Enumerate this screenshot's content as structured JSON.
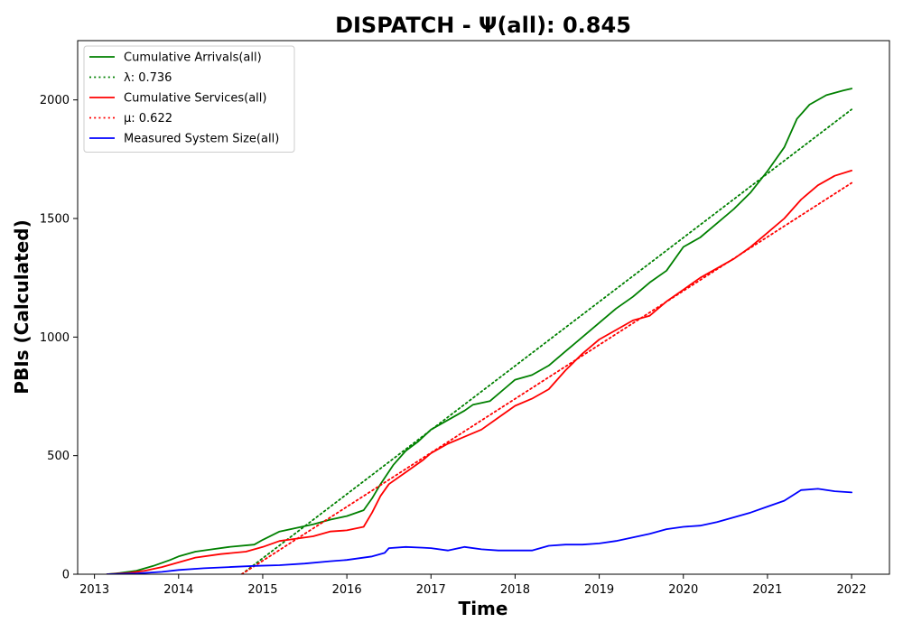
{
  "chart_data": {
    "type": "line",
    "title": "DISPATCH -  Ψ(all): 0.845",
    "xlabel": "Time",
    "ylabel": "PBIs (Calculated)",
    "xlim": [
      2012.8,
      2022.45
    ],
    "ylim": [
      0,
      2250
    ],
    "x_ticks": [
      2013,
      2014,
      2015,
      2016,
      2017,
      2018,
      2019,
      2020,
      2021,
      2022
    ],
    "x_tick_labels": [
      "2013",
      "2014",
      "2015",
      "2016",
      "2017",
      "2018",
      "2019",
      "2020",
      "2021",
      "2022"
    ],
    "y_ticks": [
      0,
      500,
      1000,
      1500,
      2000
    ],
    "y_tick_labels": [
      "0",
      "500",
      "1000",
      "1500",
      "2000"
    ],
    "grid": false,
    "legend_position": "top-left",
    "series": [
      {
        "name": "Cumulative Arrivals(all)",
        "style": "solid",
        "color": "#008000",
        "x": [
          2013.15,
          2013.3,
          2013.5,
          2013.7,
          2013.9,
          2014.0,
          2014.2,
          2014.4,
          2014.6,
          2014.9,
          2015.0,
          2015.2,
          2015.4,
          2015.6,
          2015.8,
          2016.0,
          2016.2,
          2016.3,
          2016.4,
          2016.55,
          2016.7,
          2016.85,
          2017.0,
          2017.2,
          2017.4,
          2017.5,
          2017.7,
          2017.9,
          2018.0,
          2018.2,
          2018.4,
          2018.6,
          2018.8,
          2019.0,
          2019.2,
          2019.4,
          2019.6,
          2019.8,
          2020.0,
          2020.2,
          2020.4,
          2020.6,
          2020.8,
          2021.0,
          2021.2,
          2021.35,
          2021.5,
          2021.7,
          2021.9,
          2022.0
        ],
        "y": [
          0,
          5,
          15,
          35,
          60,
          75,
          95,
          105,
          115,
          125,
          145,
          180,
          195,
          210,
          230,
          245,
          270,
          320,
          380,
          460,
          520,
          560,
          610,
          650,
          690,
          715,
          730,
          790,
          820,
          840,
          880,
          940,
          1000,
          1060,
          1120,
          1170,
          1230,
          1280,
          1380,
          1420,
          1480,
          1540,
          1610,
          1700,
          1800,
          1920,
          1980,
          2020,
          2040,
          2048
        ]
      },
      {
        "name": "λ: 0.736",
        "style": "dotted",
        "color": "#008000",
        "x": [
          2014.75,
          2022.0
        ],
        "y": [
          0,
          1960
        ]
      },
      {
        "name": "Cumulative Services(all)",
        "style": "solid",
        "color": "#ff0000",
        "x": [
          2013.15,
          2013.4,
          2013.6,
          2013.8,
          2014.0,
          2014.2,
          2014.5,
          2014.8,
          2015.0,
          2015.2,
          2015.4,
          2015.6,
          2015.8,
          2016.0,
          2016.2,
          2016.3,
          2016.4,
          2016.5,
          2016.7,
          2016.9,
          2017.0,
          2017.2,
          2017.4,
          2017.6,
          2017.8,
          2018.0,
          2018.2,
          2018.4,
          2018.6,
          2018.8,
          2019.0,
          2019.2,
          2019.4,
          2019.6,
          2019.8,
          2020.0,
          2020.2,
          2020.4,
          2020.6,
          2020.8,
          2021.0,
          2021.2,
          2021.4,
          2021.6,
          2021.8,
          2022.0
        ],
        "y": [
          0,
          5,
          15,
          30,
          50,
          70,
          85,
          95,
          115,
          140,
          150,
          160,
          180,
          185,
          200,
          260,
          330,
          380,
          430,
          480,
          510,
          550,
          580,
          610,
          660,
          710,
          740,
          780,
          860,
          930,
          990,
          1030,
          1070,
          1090,
          1150,
          1200,
          1250,
          1290,
          1330,
          1380,
          1440,
          1500,
          1580,
          1640,
          1680,
          1702
        ]
      },
      {
        "name": "μ: 0.622",
        "style": "dotted",
        "color": "#ff0000",
        "x": [
          2014.75,
          2022.0
        ],
        "y": [
          0,
          1650
        ]
      },
      {
        "name": "Measured System Size(all)",
        "style": "solid",
        "color": "#0000ff",
        "x": [
          2013.15,
          2013.5,
          2013.8,
          2014.0,
          2014.3,
          2014.6,
          2014.9,
          2015.2,
          2015.5,
          2015.8,
          2016.0,
          2016.3,
          2016.45,
          2016.5,
          2016.7,
          2016.9,
          2017.0,
          2017.2,
          2017.4,
          2017.6,
          2017.8,
          2018.0,
          2018.2,
          2018.4,
          2018.6,
          2018.8,
          2019.0,
          2019.2,
          2019.4,
          2019.6,
          2019.8,
          2020.0,
          2020.2,
          2020.4,
          2020.6,
          2020.8,
          2021.0,
          2021.2,
          2021.4,
          2021.6,
          2021.8,
          2022.0
        ],
        "y": [
          0,
          3,
          10,
          18,
          25,
          30,
          35,
          38,
          45,
          55,
          60,
          75,
          90,
          110,
          115,
          112,
          110,
          100,
          115,
          105,
          100,
          100,
          100,
          120,
          125,
          125,
          130,
          140,
          155,
          170,
          190,
          200,
          205,
          220,
          240,
          260,
          285,
          310,
          355,
          360,
          350,
          345
        ]
      }
    ]
  }
}
